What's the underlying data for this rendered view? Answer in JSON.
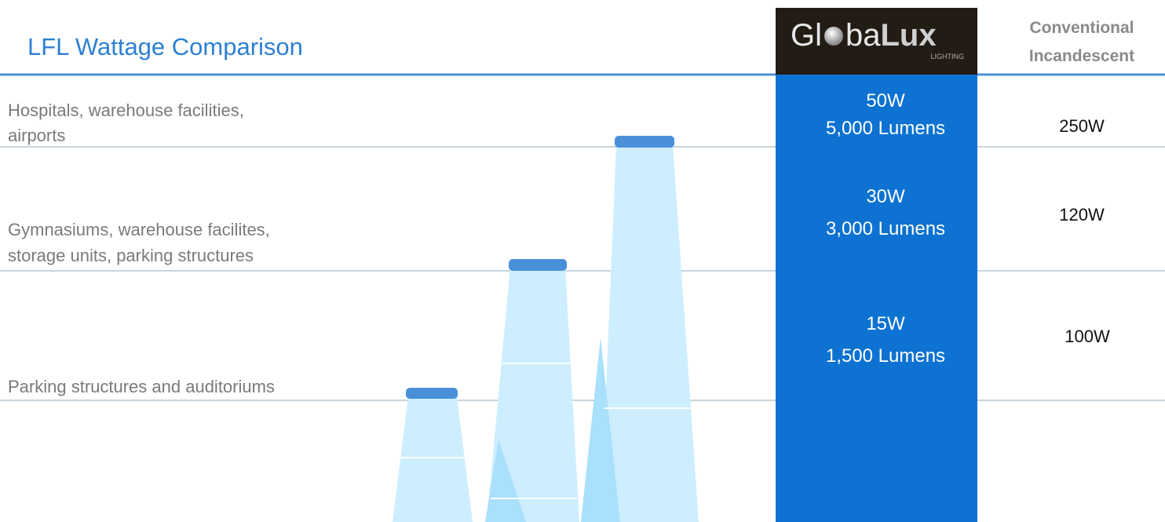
{
  "header": {
    "title": "LFL Wattage Comparison",
    "logo": {
      "part1": "Gl",
      "part2": "ba",
      "accent": "Lux",
      "sub": "LIGHTING"
    },
    "conventional": [
      "Conventional",
      "Incandescent"
    ]
  },
  "rows": [
    {
      "label": [
        "Hospitals, warehouse facilities,",
        "airports"
      ],
      "globalux_watts": "50W",
      "globalux_lumens": "5,000 Lumens",
      "conventional": "250W"
    },
    {
      "label": [
        "Gymnasiums, warehouse facilites,",
        "storage units, parking structures"
      ],
      "globalux_watts": "30W",
      "globalux_lumens": "3,000 Lumens",
      "conventional": "120W"
    },
    {
      "label": [
        "Parking structures and auditoriums"
      ],
      "globalux_watts": "15W",
      "globalux_lumens": "1,500 Lumens",
      "conventional": "100W"
    }
  ]
}
